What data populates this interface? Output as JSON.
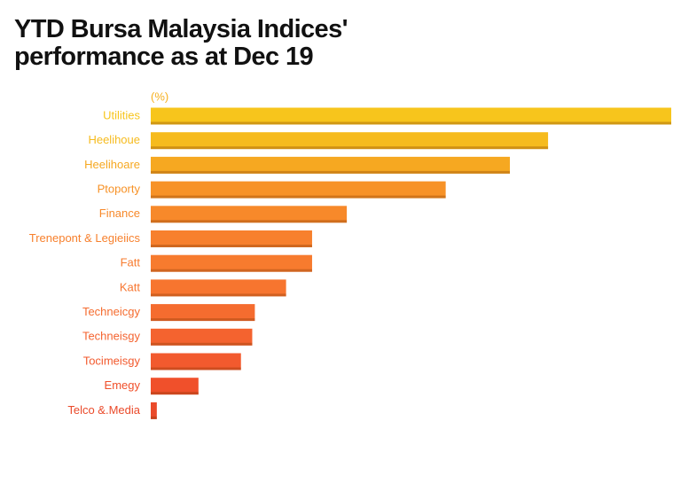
{
  "chart_data": {
    "type": "bar",
    "orientation": "horizontal",
    "title": "YTD Bursa Malaysia Indices' performance as at Dec 19",
    "unit_label": "(%)",
    "categories": [
      "Utilities",
      "Heelihoue",
      "Heelihoare",
      "Ptoporty",
      "Finance",
      "Trenepont & Legieiics",
      "Fatt",
      "Katt",
      "Techneicgy",
      "Techneisgy",
      "Tocimeisgy",
      "Emegy",
      "Telco &.Media"
    ],
    "values": [
      60,
      45.8,
      41.4,
      34,
      22.6,
      18.6,
      18.6,
      15.6,
      12,
      11.7,
      10.4,
      5.5,
      0.7
    ],
    "colors": [
      "#f7c51c",
      "#f6bb1e",
      "#f6a821",
      "#f79227",
      "#f7892a",
      "#f7802d",
      "#f77b2e",
      "#f7752f",
      "#f56c2f",
      "#f4632f",
      "#f25a2e",
      "#f0502b",
      "#ea4a2a"
    ],
    "xlim": [
      0,
      60
    ]
  }
}
